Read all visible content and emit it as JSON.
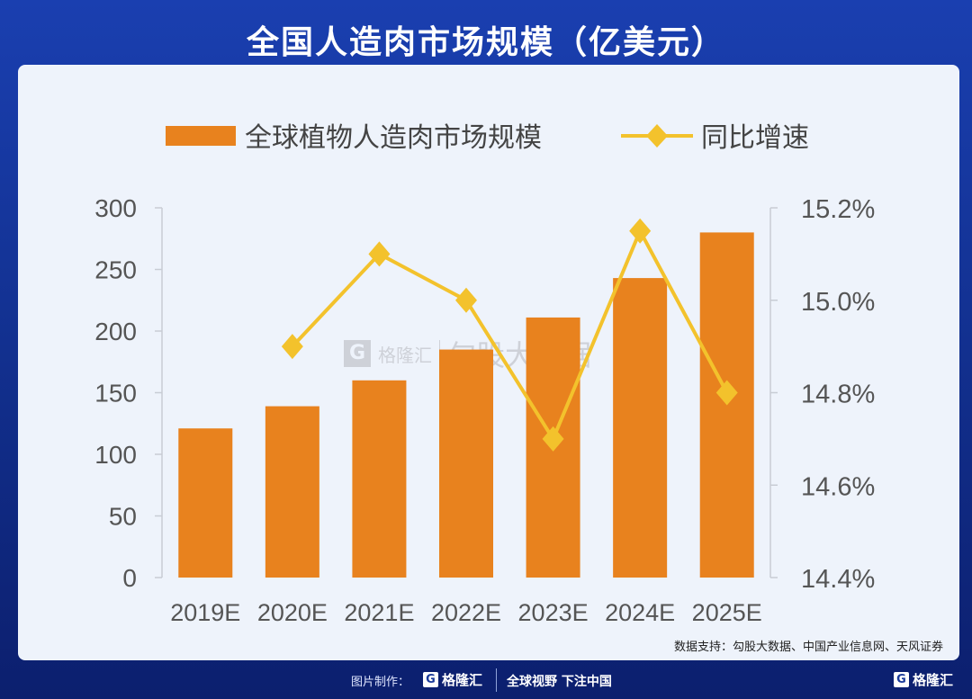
{
  "title": "全国人造肉市场规模（亿美元）",
  "chart_data": {
    "type": "bar+line",
    "title": "全国人造肉市场规模（亿美元）",
    "categories": [
      "2019E",
      "2020E",
      "2021E",
      "2022E",
      "2023E",
      "2024E",
      "2025E"
    ],
    "series": [
      {
        "name": "全球植物人造肉市场规模",
        "type": "bar",
        "axis": "left",
        "color": "#e8821e",
        "values": [
          121,
          139,
          160,
          185,
          211,
          243,
          280
        ]
      },
      {
        "name": "同比增速",
        "type": "line",
        "axis": "right",
        "color": "#f3c22c",
        "values": [
          null,
          14.9,
          15.1,
          15.0,
          14.7,
          15.15,
          14.8
        ]
      }
    ],
    "left_axis": {
      "ylim": [
        0,
        300
      ],
      "ticks": [
        "0",
        "50",
        "100",
        "150",
        "200",
        "250",
        "300"
      ]
    },
    "right_axis": {
      "ylim": [
        14.4,
        15.2
      ],
      "ticks": [
        "14.4%",
        "14.6%",
        "14.8%",
        "15.0%",
        "15.2%"
      ]
    },
    "legend": "top",
    "grid": false
  },
  "watermark": {
    "brand": "格隆汇",
    "name": "勾股大数据"
  },
  "source": "数据支持：勾股大数据、中国产业信息网、天风证券",
  "footer": {
    "label": "图片制作：",
    "brand": "格隆汇",
    "slogan": "全球视野 下注中国",
    "brand_right": "格隆汇",
    "logo_letter": "G"
  }
}
